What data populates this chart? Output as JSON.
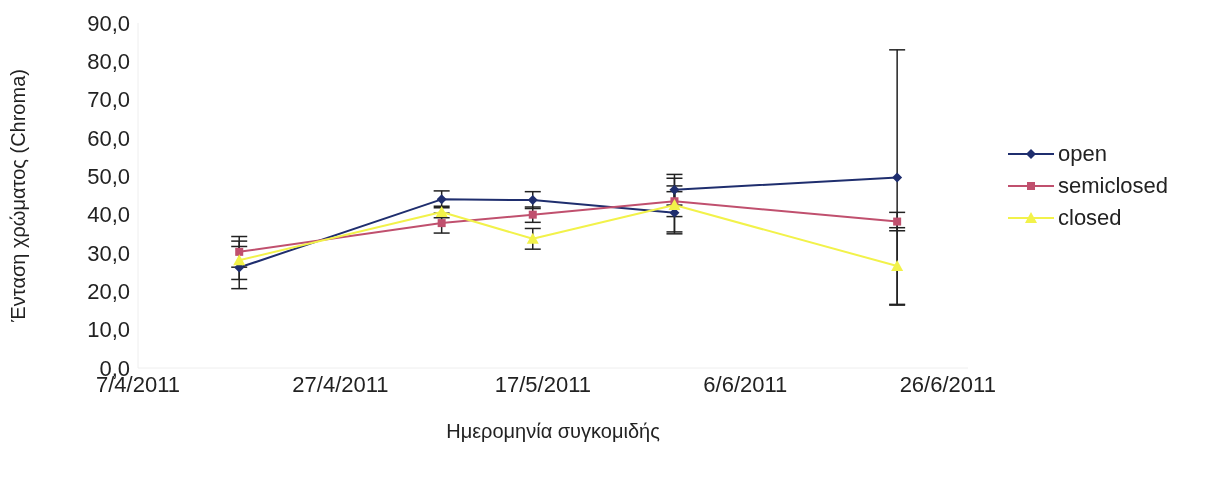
{
  "chart_data": {
    "type": "line",
    "xlabel": "Ημερομηνία συγκομιδής",
    "ylabel": "Ένταση χρώματος (Chroma)",
    "xlim": [
      "2011-04-07",
      "2011-06-28"
    ],
    "xticks": [
      {
        "value": "2011-04-07",
        "label": "7/4/2011"
      },
      {
        "value": "2011-04-27",
        "label": "27/4/2011"
      },
      {
        "value": "2011-05-17",
        "label": "17/5/2011"
      },
      {
        "value": "2011-06-06",
        "label": "6/6/2011"
      },
      {
        "value": "2011-06-26",
        "label": "26/6/2011"
      }
    ],
    "ylim": [
      0,
      90
    ],
    "yticks": [
      {
        "value": 0,
        "label": "0,0"
      },
      {
        "value": 10,
        "label": "10,0"
      },
      {
        "value": 20,
        "label": "20,0"
      },
      {
        "value": 30,
        "label": "30,0"
      },
      {
        "value": 40,
        "label": "40,0"
      },
      {
        "value": 50,
        "label": "50,0"
      },
      {
        "value": 60,
        "label": "60,0"
      },
      {
        "value": 70,
        "label": "70,0"
      },
      {
        "value": 80,
        "label": "80,0"
      },
      {
        "value": 90,
        "label": "90,0"
      }
    ],
    "grid": false,
    "legend": "right",
    "series": [
      {
        "name": "open",
        "color": "#1f2e6e",
        "marker": "diamond",
        "x": [
          "2011-04-17",
          "2011-05-07",
          "2011-05-16",
          "2011-05-30",
          "2011-05-30",
          "2011-06-21"
        ],
        "values": [
          26.2,
          44.0,
          43.8,
          40.5,
          46.5,
          49.7
        ],
        "errors": [
          5.5,
          2.2,
          2.2,
          5.5,
          4.0,
          33.3
        ]
      },
      {
        "name": "semiclosed",
        "color": "#c0506e",
        "marker": "square",
        "x": [
          "2011-04-17",
          "2011-05-07",
          "2011-05-16",
          "2011-05-30",
          "2011-06-21"
        ],
        "values": [
          30.3,
          37.8,
          40.0,
          43.5,
          38.2
        ],
        "errors": [
          4.0,
          2.6,
          2.0,
          4.0,
          2.4
        ]
      },
      {
        "name": "closed",
        "color": "#f2f24a",
        "marker": "triangle",
        "x": [
          "2011-04-17",
          "2011-05-07",
          "2011-05-16",
          "2011-05-30",
          "2011-06-21"
        ],
        "values": [
          28.1,
          40.7,
          33.7,
          42.5,
          26.6
        ],
        "errors": [
          5.0,
          1.5,
          2.7,
          7.0,
          10.0
        ]
      }
    ]
  }
}
